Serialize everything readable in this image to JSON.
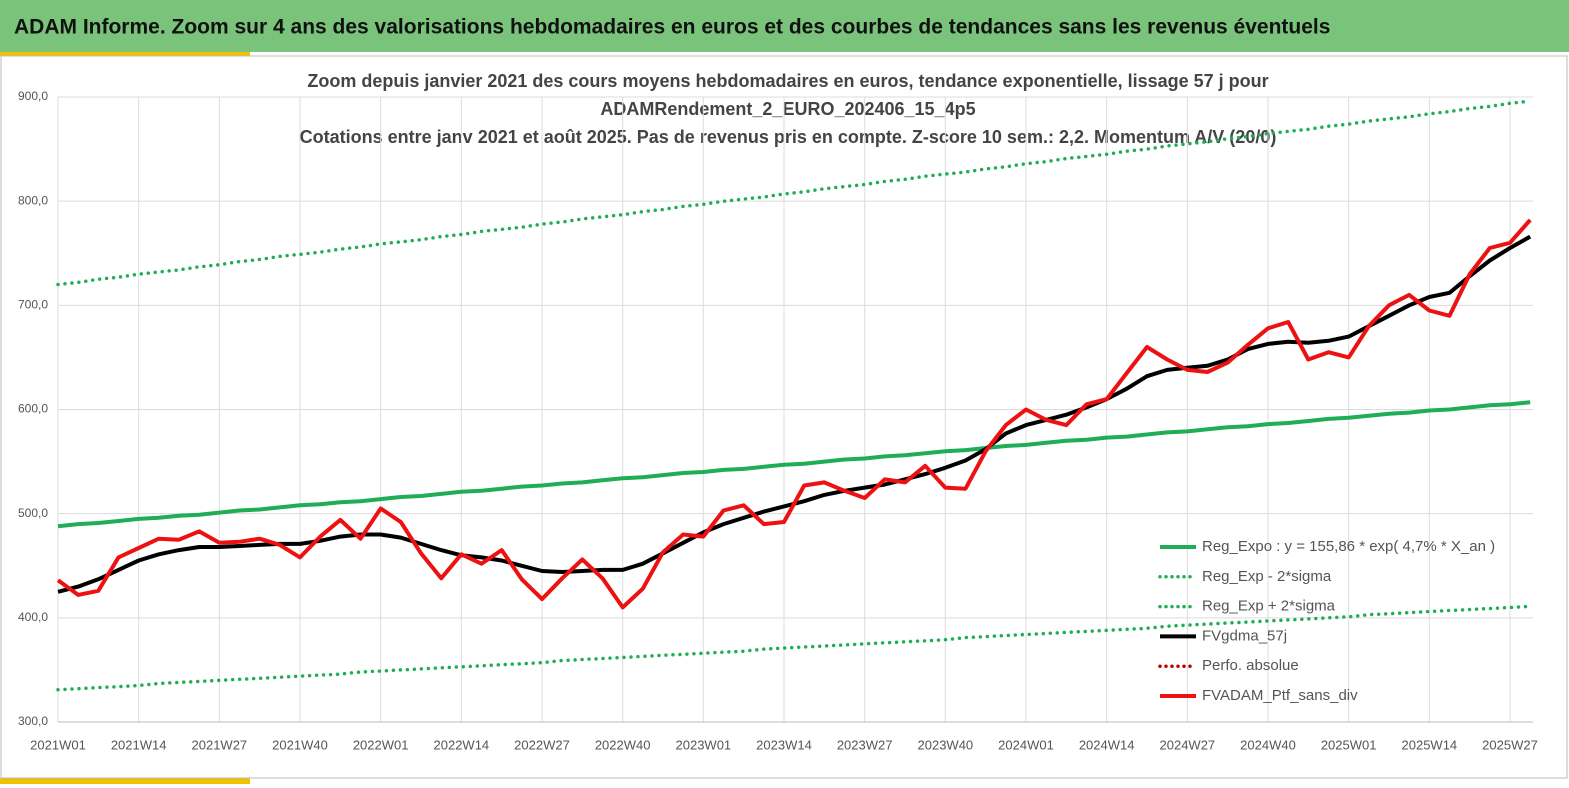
{
  "header": {
    "title": "ADAM Informe. Zoom sur 4 ans des valorisations hebdomadaires en euros et des courbes de tendances sans les revenus éventuels"
  },
  "chart_data": {
    "type": "line",
    "title_lines": [
      "Zoom depuis janvier 2021 des cours moyens hebdomadaires  en euros, tendance exponentielle, lissage 57 j pour",
      "ADAMRendement_2_EURO_202406_15_4p5",
      "Cotations  entre janv 2021 et août 2025. Pas de revenus pris en compte. Z-score 10 sem.: 2,2. Momentum A/V (20/0)"
    ],
    "categories": [
      "2021W01",
      null,
      null,
      null,
      "2021W14",
      null,
      null,
      null,
      "2021W27",
      null,
      null,
      null,
      "2021W40",
      null,
      null,
      null,
      "2022W01",
      null,
      null,
      null,
      "2022W14",
      null,
      null,
      null,
      "2022W27",
      null,
      null,
      null,
      "2022W40",
      null,
      null,
      null,
      "2023W01",
      null,
      null,
      null,
      "2023W14",
      null,
      null,
      null,
      "2023W27",
      null,
      null,
      null,
      "2023W40",
      null,
      null,
      null,
      "2024W01",
      null,
      null,
      null,
      "2024W14",
      null,
      null,
      null,
      "2024W27",
      null,
      null,
      null,
      "2024W40",
      null,
      null,
      null,
      "2025W01",
      null,
      null,
      null,
      "2025W14",
      null,
      null,
      null,
      "2025W27",
      null
    ],
    "ylim": [
      300,
      900
    ],
    "yticks": [
      {
        "value": 300,
        "label": "300,0"
      },
      {
        "value": 400,
        "label": "400,0"
      },
      {
        "value": 500,
        "label": "500,0"
      },
      {
        "value": 600,
        "label": "600,0"
      },
      {
        "value": 700,
        "label": "700,0"
      },
      {
        "value": 800,
        "label": "800,0"
      },
      {
        "value": 900,
        "label": "900,0"
      }
    ],
    "grid": true,
    "legend": "lower right",
    "series": [
      {
        "name": "Reg_Expo : y = 155,86 * exp( 4,7% *  X_an )",
        "color": "#1fae55",
        "dash": "solid",
        "values": [
          488,
          490,
          491,
          493,
          495,
          496,
          498,
          499,
          501,
          503,
          504,
          506,
          508,
          509,
          511,
          512,
          514,
          516,
          517,
          519,
          521,
          522,
          524,
          526,
          527,
          529,
          530,
          532,
          534,
          535,
          537,
          539,
          540,
          542,
          543,
          545,
          547,
          548,
          550,
          552,
          553,
          555,
          556,
          558,
          560,
          561,
          563,
          565,
          566,
          568,
          570,
          571,
          573,
          574,
          576,
          578,
          579,
          581,
          583,
          584,
          586,
          587,
          589,
          591,
          592,
          594,
          596,
          597,
          599,
          600,
          602,
          604,
          605,
          607
        ]
      },
      {
        "name": "Reg_Exp - 2*sigma",
        "color": "#1fae55",
        "dash": "dotted",
        "values": [
          331,
          332,
          333,
          334,
          335,
          337,
          338,
          339,
          340,
          341,
          342,
          343,
          344,
          345,
          346,
          348,
          349,
          350,
          351,
          352,
          353,
          354,
          355,
          356,
          357,
          359,
          360,
          361,
          362,
          363,
          364,
          365,
          366,
          367,
          368,
          370,
          371,
          372,
          373,
          374,
          375,
          376,
          377,
          378,
          379,
          381,
          382,
          383,
          384,
          385,
          386,
          387,
          388,
          389,
          390,
          392,
          393,
          394,
          395,
          396,
          397,
          398,
          399,
          400,
          401,
          403,
          404,
          405,
          406,
          407,
          408,
          409,
          410,
          411
        ]
      },
      {
        "name": "Reg_Exp + 2*sigma",
        "color": "#1fae55",
        "dash": "dotted",
        "values": [
          720,
          722,
          725,
          727,
          730,
          732,
          734,
          737,
          739,
          742,
          744,
          747,
          749,
          751,
          754,
          756,
          759,
          761,
          763,
          766,
          768,
          771,
          773,
          775,
          778,
          780,
          783,
          785,
          787,
          790,
          792,
          795,
          797,
          800,
          802,
          804,
          807,
          809,
          812,
          814,
          816,
          819,
          821,
          824,
          826,
          828,
          831,
          833,
          836,
          838,
          841,
          843,
          845,
          848,
          850,
          853,
          855,
          857,
          860,
          862,
          865,
          867,
          869,
          872,
          874,
          877,
          879,
          881,
          884,
          886,
          889,
          891,
          894,
          896
        ]
      },
      {
        "name": "FVgdma_57j",
        "color": "#000000",
        "dash": "solid",
        "values": [
          425,
          430,
          437,
          446,
          455,
          461,
          465,
          468,
          468,
          469,
          470,
          471,
          471,
          474,
          478,
          480,
          480,
          477,
          471,
          465,
          460,
          458,
          455,
          450,
          445,
          444,
          445,
          446,
          446,
          452,
          462,
          472,
          482,
          490,
          496,
          502,
          507,
          512,
          518,
          522,
          525,
          528,
          533,
          538,
          544,
          551,
          562,
          577,
          585,
          590,
          595,
          602,
          610,
          620,
          632,
          638,
          640,
          642,
          648,
          658,
          663,
          665,
          664,
          666,
          670,
          680,
          690,
          700,
          708,
          712,
          728,
          743,
          755,
          766
        ]
      },
      {
        "name": "Perfo. absolue",
        "color": "#c00000",
        "dash": "dotted",
        "values": [
          null,
          null,
          null,
          null,
          null,
          null,
          null,
          null,
          null,
          null,
          null,
          null,
          null,
          null,
          null,
          null,
          null,
          null,
          null,
          null,
          null,
          null,
          null,
          null,
          null,
          null,
          null,
          null,
          null,
          null,
          null,
          null,
          null,
          null,
          null,
          null,
          null,
          null,
          null,
          null,
          null,
          null,
          null,
          null,
          null,
          null,
          null,
          null,
          null,
          null,
          null,
          null,
          null,
          null,
          null,
          null,
          null,
          null,
          null,
          null,
          null,
          null,
          null,
          null,
          null,
          null,
          null,
          null,
          null,
          null,
          null,
          null,
          null,
          null
        ]
      },
      {
        "name": "FVADAM_Ptf_sans_div",
        "color": "#ee1111",
        "dash": "solid",
        "values": [
          436,
          422,
          426,
          458,
          467,
          476,
          475,
          483,
          472,
          473,
          476,
          470,
          458,
          478,
          494,
          476,
          505,
          492,
          462,
          438,
          461,
          452,
          465,
          437,
          418,
          438,
          456,
          438,
          410,
          428,
          463,
          480,
          478,
          503,
          508,
          490,
          492,
          527,
          530,
          522,
          515,
          533,
          530,
          546,
          525,
          524,
          560,
          585,
          600,
          590,
          585,
          605,
          610,
          635,
          660,
          648,
          638,
          636,
          645,
          662,
          678,
          684,
          648,
          655,
          650,
          680,
          700,
          710,
          695,
          690,
          730,
          755,
          760,
          782
        ]
      }
    ]
  }
}
